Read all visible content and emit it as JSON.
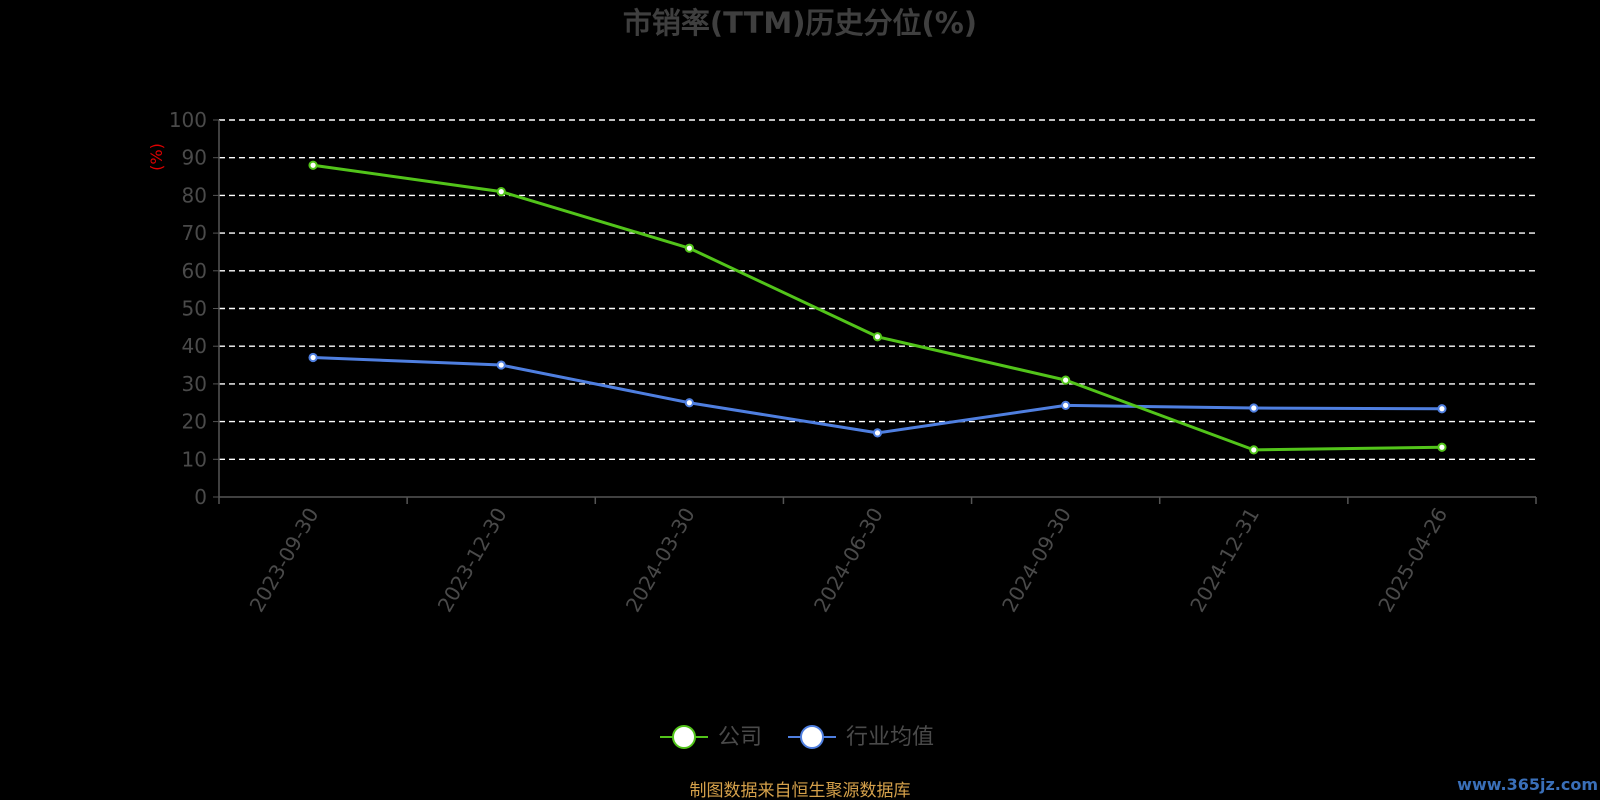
{
  "chart_data": {
    "type": "line",
    "title": "市销率(TTM)历史分位(%)",
    "ylabel": "(%)",
    "ylim": [
      0,
      100
    ],
    "yticks": [
      0,
      10,
      20,
      30,
      40,
      50,
      60,
      70,
      80,
      90,
      100
    ],
    "grid": true,
    "legend_position": "bottom-center",
    "categories": [
      "2023-09-30",
      "2023-12-30",
      "2024-03-30",
      "2024-06-30",
      "2024-09-30",
      "2024-12-31",
      "2025-04-26"
    ],
    "series": [
      {
        "name": "公司",
        "color": "#52c41a",
        "values": [
          88,
          81,
          66,
          42.5,
          31,
          12.5,
          13.2
        ]
      },
      {
        "name": "行业均值",
        "color": "#4f7fe0",
        "values": [
          37,
          35,
          25,
          17,
          24.3,
          23.6,
          23.4
        ]
      }
    ],
    "source_note": "制图数据来自恒生聚源数据库",
    "watermark": "www.365jz.com"
  }
}
